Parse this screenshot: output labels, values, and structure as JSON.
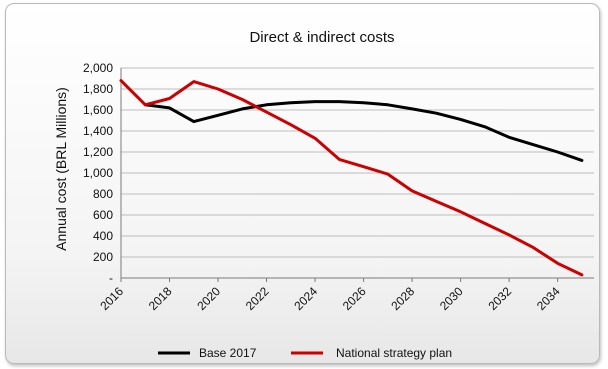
{
  "chart_data": {
    "type": "line",
    "title": "Direct & indirect costs",
    "xlabel": "",
    "ylabel": "Annual cost (BRL Millions)",
    "ylim": [
      0,
      2000
    ],
    "y_ticks": [
      0,
      200,
      400,
      600,
      800,
      1000,
      1200,
      1400,
      1600,
      1800,
      2000
    ],
    "y_tick_labels": [
      "-",
      "200",
      "400",
      "600",
      "800",
      "1,000",
      "1,200",
      "1,400",
      "1,600",
      "1,800",
      "2,000"
    ],
    "x": [
      2016,
      2017,
      2018,
      2019,
      2020,
      2021,
      2022,
      2023,
      2024,
      2025,
      2026,
      2027,
      2028,
      2029,
      2030,
      2031,
      2032,
      2033,
      2034,
      2035
    ],
    "x_tick_labels": [
      "2016",
      "2018",
      "2020",
      "2022",
      "2024",
      "2026",
      "2028",
      "2030",
      "2032",
      "2034"
    ],
    "grid": "horizontal",
    "legend": "bottom",
    "series": [
      {
        "name": "Base 2017",
        "color": "#000000",
        "values": [
          null,
          1650,
          1620,
          1490,
          1550,
          1610,
          1650,
          1670,
          1680,
          1680,
          1670,
          1650,
          1610,
          1570,
          1510,
          1440,
          1340,
          1270,
          1200,
          1120
        ]
      },
      {
        "name": "National strategy plan",
        "color": "#cc0000",
        "values": [
          1880,
          1650,
          1710,
          1870,
          1800,
          1700,
          1580,
          1460,
          1330,
          1130,
          1060,
          990,
          830,
          730,
          630,
          520,
          410,
          290,
          140,
          30
        ]
      }
    ]
  }
}
